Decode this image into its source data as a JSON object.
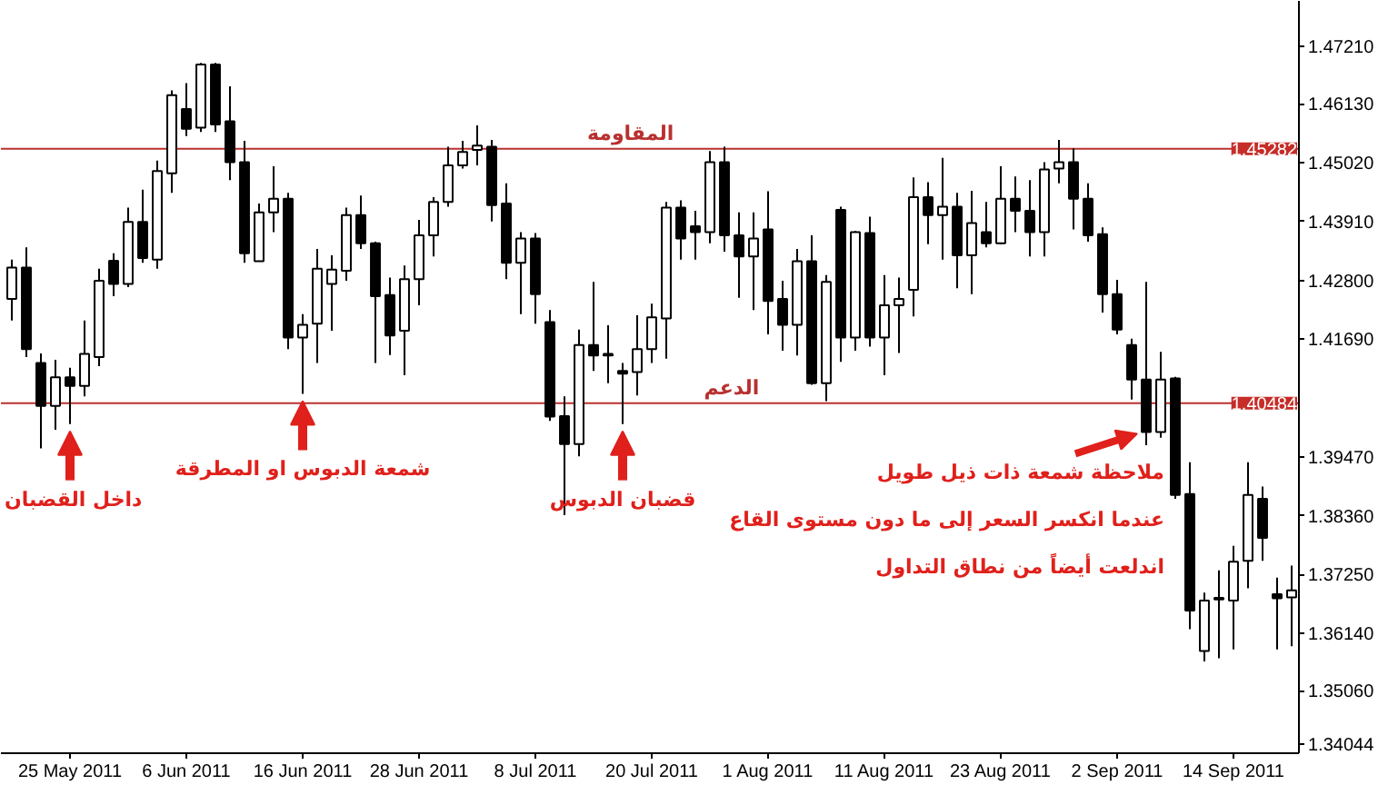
{
  "chart_data": {
    "type": "candlestick",
    "categories": [
      null,
      null,
      null,
      null,
      "25 May 2011",
      null,
      null,
      null,
      null,
      null,
      null,
      null,
      "6 Jun 2011",
      null,
      null,
      null,
      null,
      null,
      null,
      null,
      "16 Jun 2011",
      null,
      null,
      null,
      null,
      null,
      null,
      null,
      "28 Jun 2011",
      null,
      null,
      null,
      null,
      null,
      null,
      null,
      "8 Jul 2011",
      null,
      null,
      null,
      null,
      null,
      null,
      null,
      "20 Jul 2011",
      null,
      null,
      null,
      null,
      null,
      null,
      null,
      "1 Aug 2011",
      null,
      null,
      null,
      null,
      null,
      null,
      null,
      "11 Aug 2011",
      null,
      null,
      null,
      null,
      null,
      null,
      null,
      "23 Aug 2011",
      null,
      null,
      null,
      null,
      null,
      null,
      null,
      "2 Sep 2011",
      null,
      null,
      null,
      null,
      null,
      null,
      null,
      "14 Sep 2011",
      null,
      null,
      null,
      null
    ],
    "ohlc": [
      [
        1.4245,
        1.4319,
        1.4204,
        1.4304
      ],
      [
        1.4304,
        1.4342,
        1.4135,
        1.415
      ],
      [
        1.4124,
        1.4142,
        1.3963,
        1.4043
      ],
      [
        1.4043,
        1.413,
        1.3998,
        1.4097
      ],
      [
        1.4097,
        1.4115,
        1.4009,
        1.4081
      ],
      [
        1.4081,
        1.4204,
        1.4061,
        1.4141
      ],
      [
        1.4135,
        1.4302,
        1.4118,
        1.4279
      ],
      [
        1.4317,
        1.4331,
        1.425,
        1.4273
      ],
      [
        1.4273,
        1.4417,
        1.4267,
        1.439
      ],
      [
        1.439,
        1.4451,
        1.4313,
        1.4322
      ],
      [
        1.4319,
        1.4506,
        1.4302,
        1.4486
      ],
      [
        1.4482,
        1.4638,
        1.4445,
        1.4629
      ],
      [
        1.4603,
        1.4652,
        1.4552,
        1.4566
      ],
      [
        1.4568,
        1.469,
        1.456,
        1.4687
      ],
      [
        1.4687,
        1.469,
        1.456,
        1.4574
      ],
      [
        1.458,
        1.4646,
        1.4469,
        1.4503
      ],
      [
        1.4503,
        1.4543,
        1.4313,
        1.4331
      ],
      [
        1.4316,
        1.4425,
        1.4316,
        1.4408
      ],
      [
        1.4408,
        1.4495,
        1.4371,
        1.4434
      ],
      [
        1.4434,
        1.4445,
        1.415,
        1.4172
      ],
      [
        1.4172,
        1.4216,
        1.4066,
        1.4196
      ],
      [
        1.4198,
        1.4339,
        1.4124,
        1.4302
      ],
      [
        1.4273,
        1.4327,
        1.4185,
        1.43
      ],
      [
        1.4298,
        1.4417,
        1.4279,
        1.4403
      ],
      [
        1.4403,
        1.444,
        1.4339,
        1.435
      ],
      [
        1.435,
        1.4353,
        1.4124,
        1.425
      ],
      [
        1.4252,
        1.4285,
        1.4139,
        1.4176
      ],
      [
        1.4185,
        1.4308,
        1.4101,
        1.4282
      ],
      [
        1.4282,
        1.4394,
        1.4233,
        1.4365
      ],
      [
        1.4365,
        1.4437,
        1.4325,
        1.4428
      ],
      [
        1.4428,
        1.4532,
        1.4419,
        1.4497
      ],
      [
        1.4497,
        1.4543,
        1.4491,
        1.4522
      ],
      [
        1.4526,
        1.4572,
        1.4497,
        1.4534
      ],
      [
        1.4532,
        1.4545,
        1.4391,
        1.4422
      ],
      [
        1.4425,
        1.4463,
        1.4282,
        1.4313
      ],
      [
        1.4313,
        1.4371,
        1.4216,
        1.4359
      ],
      [
        1.4359,
        1.4369,
        1.4198,
        1.4254
      ],
      [
        1.4201,
        1.4224,
        1.4015,
        1.4023
      ],
      [
        1.4024,
        1.4061,
        1.3837,
        1.3971
      ],
      [
        1.3971,
        1.4187,
        1.3948,
        1.4158
      ],
      [
        1.4158,
        1.4277,
        1.4109,
        1.4138
      ],
      [
        1.4141,
        1.4195,
        1.4086,
        1.4138
      ],
      [
        1.4109,
        1.4124,
        1.4009,
        1.4104
      ],
      [
        1.4107,
        1.4214,
        1.4063,
        1.415
      ],
      [
        1.415,
        1.4236,
        1.4124,
        1.421
      ],
      [
        1.4208,
        1.4428,
        1.4132,
        1.4417
      ],
      [
        1.4417,
        1.4431,
        1.4319,
        1.4359
      ],
      [
        1.4382,
        1.4411,
        1.4319,
        1.4371
      ],
      [
        1.4371,
        1.4524,
        1.435,
        1.4503
      ],
      [
        1.4503,
        1.4532,
        1.4334,
        1.4365
      ],
      [
        1.4365,
        1.4408,
        1.4247,
        1.4325
      ],
      [
        1.4325,
        1.4408,
        1.4224,
        1.4359
      ],
      [
        1.4376,
        1.4448,
        1.4178,
        1.4241
      ],
      [
        1.4245,
        1.4279,
        1.4147,
        1.4196
      ],
      [
        1.4196,
        1.4339,
        1.4138,
        1.4316
      ],
      [
        1.4316,
        1.4365,
        1.4083,
        1.4086
      ],
      [
        1.4086,
        1.429,
        1.4052,
        1.4277
      ],
      [
        1.4413,
        1.4419,
        1.4126,
        1.4172
      ],
      [
        1.4172,
        1.4373,
        1.4147,
        1.4371
      ],
      [
        1.4369,
        1.44,
        1.4155,
        1.4172
      ],
      [
        1.4172,
        1.429,
        1.4101,
        1.4233
      ],
      [
        1.4233,
        1.4285,
        1.4143,
        1.4245
      ],
      [
        1.4262,
        1.4474,
        1.4212,
        1.4437
      ],
      [
        1.4437,
        1.4465,
        1.4348,
        1.4403
      ],
      [
        1.4403,
        1.4511,
        1.4319,
        1.4419
      ],
      [
        1.4419,
        1.4445,
        1.4265,
        1.4327
      ],
      [
        1.4327,
        1.4449,
        1.4254,
        1.4388
      ],
      [
        1.4371,
        1.4428,
        1.4342,
        1.435
      ],
      [
        1.435,
        1.4495,
        1.4348,
        1.4434
      ],
      [
        1.4434,
        1.4476,
        1.4371,
        1.4411
      ],
      [
        1.4411,
        1.4469,
        1.4325,
        1.4371
      ],
      [
        1.4371,
        1.4503,
        1.4325,
        1.4489
      ],
      [
        1.4491,
        1.4545,
        1.4463,
        1.4503
      ],
      [
        1.4503,
        1.4529,
        1.4376,
        1.4434
      ],
      [
        1.4434,
        1.4463,
        1.4353,
        1.4365
      ],
      [
        1.4367,
        1.438,
        1.4219,
        1.4254
      ],
      [
        1.4254,
        1.4281,
        1.4178,
        1.4187
      ],
      [
        1.4158,
        1.417,
        1.4055,
        1.4093
      ],
      [
        1.4093,
        1.4277,
        1.3969,
        1.3994
      ],
      [
        1.3994,
        1.4145,
        1.3983,
        1.4093
      ],
      [
        1.4095,
        1.4098,
        1.3868,
        1.3875
      ],
      [
        1.3877,
        1.3937,
        1.3622,
        1.3657
      ],
      [
        1.3581,
        1.3691,
        1.3561,
        1.3676
      ],
      [
        1.3681,
        1.3733,
        1.3567,
        1.3678
      ],
      [
        1.3676,
        1.3779,
        1.3584,
        1.3749
      ],
      [
        1.3751,
        1.3937,
        1.3699,
        1.3875
      ],
      [
        1.3868,
        1.3891,
        1.3751,
        1.3794
      ],
      [
        1.3688,
        1.3719,
        1.3584,
        1.368
      ],
      [
        1.3682,
        1.3742,
        1.359,
        1.3695
      ]
    ],
    "ylim": [
      1.3388,
      1.4807
    ],
    "yticks": [
      {
        "value": 1.4721,
        "label": "1.47210"
      },
      {
        "value": 1.4613,
        "label": "1.46130"
      },
      {
        "value": 1.4502,
        "label": "1.45020"
      },
      {
        "value": 1.4391,
        "label": "1.43910"
      },
      {
        "value": 1.428,
        "label": "1.42800"
      },
      {
        "value": 1.4169,
        "label": "1.41690"
      },
      {
        "value": 1.3947,
        "label": "1.39470"
      },
      {
        "value": 1.3836,
        "label": "1.38360"
      },
      {
        "value": 1.3725,
        "label": "1.37250"
      },
      {
        "value": 1.3614,
        "label": "1.36140"
      },
      {
        "value": 1.3506,
        "label": "1.35060"
      },
      {
        "value": 1.34044,
        "label": "1.34044"
      }
    ],
    "ref_lines": [
      {
        "axis": "y",
        "value": 1.45282,
        "label": "المقاومة",
        "color": "#b8312f"
      },
      {
        "axis": "y",
        "value": 1.40484,
        "label": "الدعم",
        "color": "#b8312f"
      }
    ],
    "annotations": [
      {
        "text": "داخل القضبان",
        "x": "25 May 2011",
        "y": 1.4009
      },
      {
        "text": "شمعة الدبوس او المطرقة",
        "x": "16 Jun 2011",
        "y": 1.4066
      },
      {
        "text": "قضبان الدبوس",
        "y": 1.4009
      },
      "ملاحظة شمعة ذات ذيل طويل\nعندما انكسر السعر إلى ما دون مستوى القاع\nاندلعت أيضاً من نطاق التداول",
      {
        "text": "1.45282",
        "y": 1.45282
      },
      {
        "text": "1.40484",
        "y": 1.40484
      }
    ]
  }
}
